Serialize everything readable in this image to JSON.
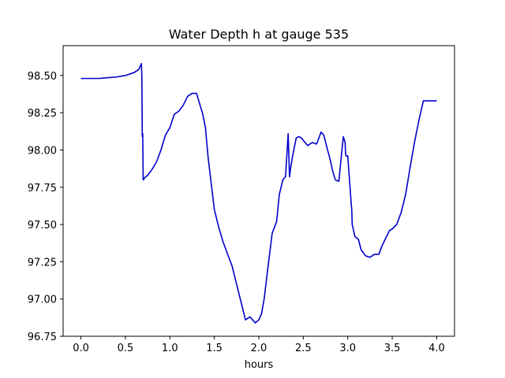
{
  "chart_data": {
    "type": "line",
    "title": "Water Depth h at gauge 535",
    "xlabel": "hours",
    "ylabel": "",
    "xlim": [
      -0.2,
      4.2
    ],
    "ylim": [
      96.75,
      98.7
    ],
    "xticks": [
      "0.0",
      "0.5",
      "1.0",
      "1.5",
      "2.0",
      "2.5",
      "3.0",
      "3.5",
      "4.0"
    ],
    "xtick_values": [
      0.0,
      0.5,
      1.0,
      1.5,
      2.0,
      2.5,
      3.0,
      3.5,
      4.0
    ],
    "yticks": [
      "96.75",
      "97.00",
      "97.25",
      "97.50",
      "97.75",
      "98.00",
      "98.25",
      "98.50"
    ],
    "ytick_values": [
      96.75,
      97.0,
      97.25,
      97.5,
      97.75,
      98.0,
      98.25,
      98.5
    ],
    "grid": false,
    "series_color": "#0000cc",
    "series": [
      {
        "x": [
          0.0,
          0.1,
          0.2,
          0.3,
          0.4,
          0.5,
          0.6,
          0.65,
          0.68,
          0.685,
          0.69,
          0.695,
          0.7,
          0.705,
          0.71,
          0.75,
          0.8,
          0.85,
          0.9,
          0.95,
          1.0,
          1.05,
          1.1,
          1.15,
          1.2,
          1.25,
          1.3,
          1.33,
          1.37,
          1.4,
          1.43,
          1.47,
          1.5,
          1.55,
          1.6,
          1.7,
          1.75,
          1.8,
          1.85,
          1.9,
          1.93,
          1.96,
          2.0,
          2.03,
          2.06,
          2.1,
          2.15,
          2.2,
          2.23,
          2.27,
          2.3,
          2.33,
          2.345,
          2.35,
          2.355,
          2.38,
          2.42,
          2.45,
          2.48,
          2.52,
          2.55,
          2.6,
          2.65,
          2.7,
          2.73,
          2.76,
          2.8,
          2.83,
          2.86,
          2.9,
          2.95,
          2.97,
          2.975,
          2.98,
          3.0,
          3.04,
          3.045,
          3.05,
          3.08,
          3.12,
          3.15,
          3.2,
          3.25,
          3.3,
          3.35,
          3.38,
          3.42,
          3.47,
          3.5,
          3.55,
          3.6,
          3.65,
          3.7,
          3.75,
          3.8,
          3.85,
          3.9,
          3.95,
          4.0
        ],
        "y": [
          98.48,
          98.48,
          98.48,
          98.485,
          98.49,
          98.5,
          98.52,
          98.54,
          98.58,
          98.5,
          98.09,
          98.11,
          97.8,
          97.8,
          97.81,
          97.83,
          97.87,
          97.92,
          98.0,
          98.1,
          98.15,
          98.24,
          98.26,
          98.3,
          98.36,
          98.38,
          98.38,
          98.32,
          98.24,
          98.15,
          97.95,
          97.75,
          97.6,
          97.48,
          97.38,
          97.22,
          97.1,
          96.98,
          96.86,
          96.88,
          96.86,
          96.84,
          96.86,
          96.9,
          97.0,
          97.2,
          97.44,
          97.52,
          97.7,
          97.8,
          97.82,
          98.11,
          97.82,
          97.84,
          97.87,
          97.96,
          98.08,
          98.09,
          98.08,
          98.05,
          98.03,
          98.05,
          98.04,
          98.12,
          98.1,
          98.03,
          97.94,
          97.86,
          97.8,
          97.79,
          98.09,
          98.05,
          97.98,
          97.96,
          97.96,
          97.63,
          97.6,
          97.5,
          97.42,
          97.4,
          97.33,
          97.29,
          97.28,
          97.3,
          97.3,
          97.35,
          97.4,
          97.46,
          97.47,
          97.5,
          97.58,
          97.7,
          97.88,
          98.05,
          98.2,
          98.33,
          98.33,
          98.33,
          98.33
        ]
      }
    ]
  }
}
